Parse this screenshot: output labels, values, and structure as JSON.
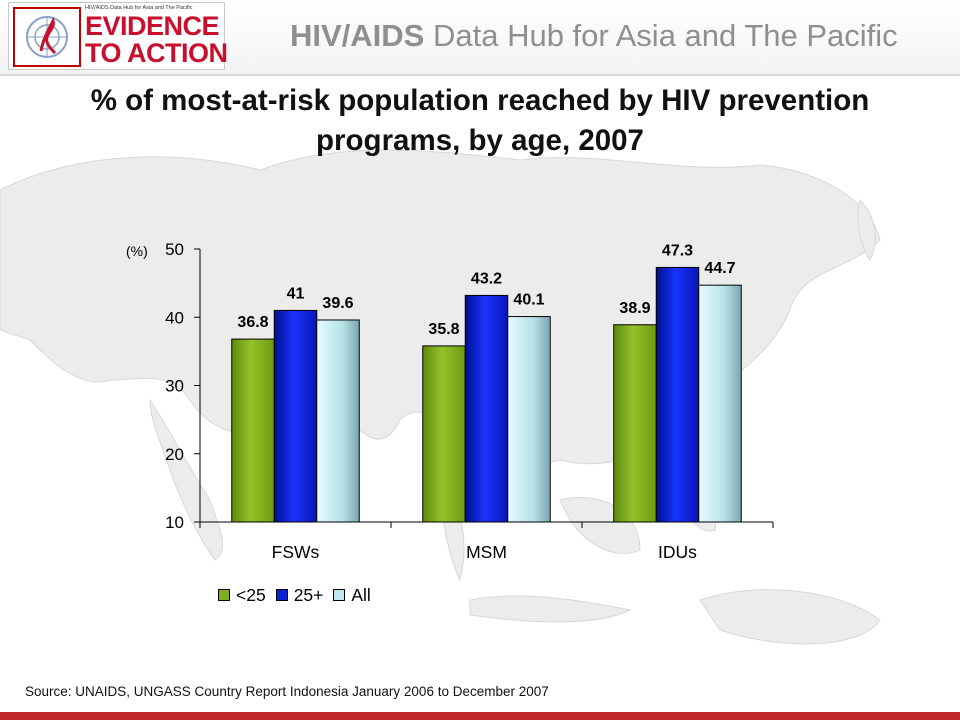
{
  "header": {
    "logo": {
      "small_text": "HIV/AIDS Data Hub for Asia and The Pacific",
      "line1": "EVIDENCE",
      "line2": "TO ACTION"
    },
    "title_bold": "HIV/AIDS",
    "title_rest": " Data Hub for Asia and The Pacific"
  },
  "slide_title": "% of most-at-risk population reached by HIV prevention programs, by age, 2007",
  "source": "Source: UNAIDS, UNGASS Country Report Indonesia January 2006 to December 2007",
  "colors": {
    "header_title": "#8f8f8f",
    "brand_red": "#c8102e",
    "footer_bar": "#c0282d"
  },
  "chart_data": {
    "type": "bar",
    "categories": [
      "FSWs",
      "MSM",
      "IDUs"
    ],
    "series": [
      {
        "name": "<25",
        "values": [
          36.8,
          35.8,
          38.9
        ],
        "color": "#7fae1a"
      },
      {
        "name": "25+",
        "values": [
          41,
          43.2,
          47.3
        ],
        "color": "#0a1fd0"
      },
      {
        "name": "All",
        "values": [
          39.6,
          40.1,
          44.7
        ],
        "color": "#bfe8ee"
      }
    ],
    "ylabel": "(%)",
    "ylim": [
      10,
      50
    ],
    "yticks": [
      10,
      20,
      30,
      40,
      50
    ],
    "data_labels": true,
    "grid": false,
    "legend": "bottom"
  }
}
